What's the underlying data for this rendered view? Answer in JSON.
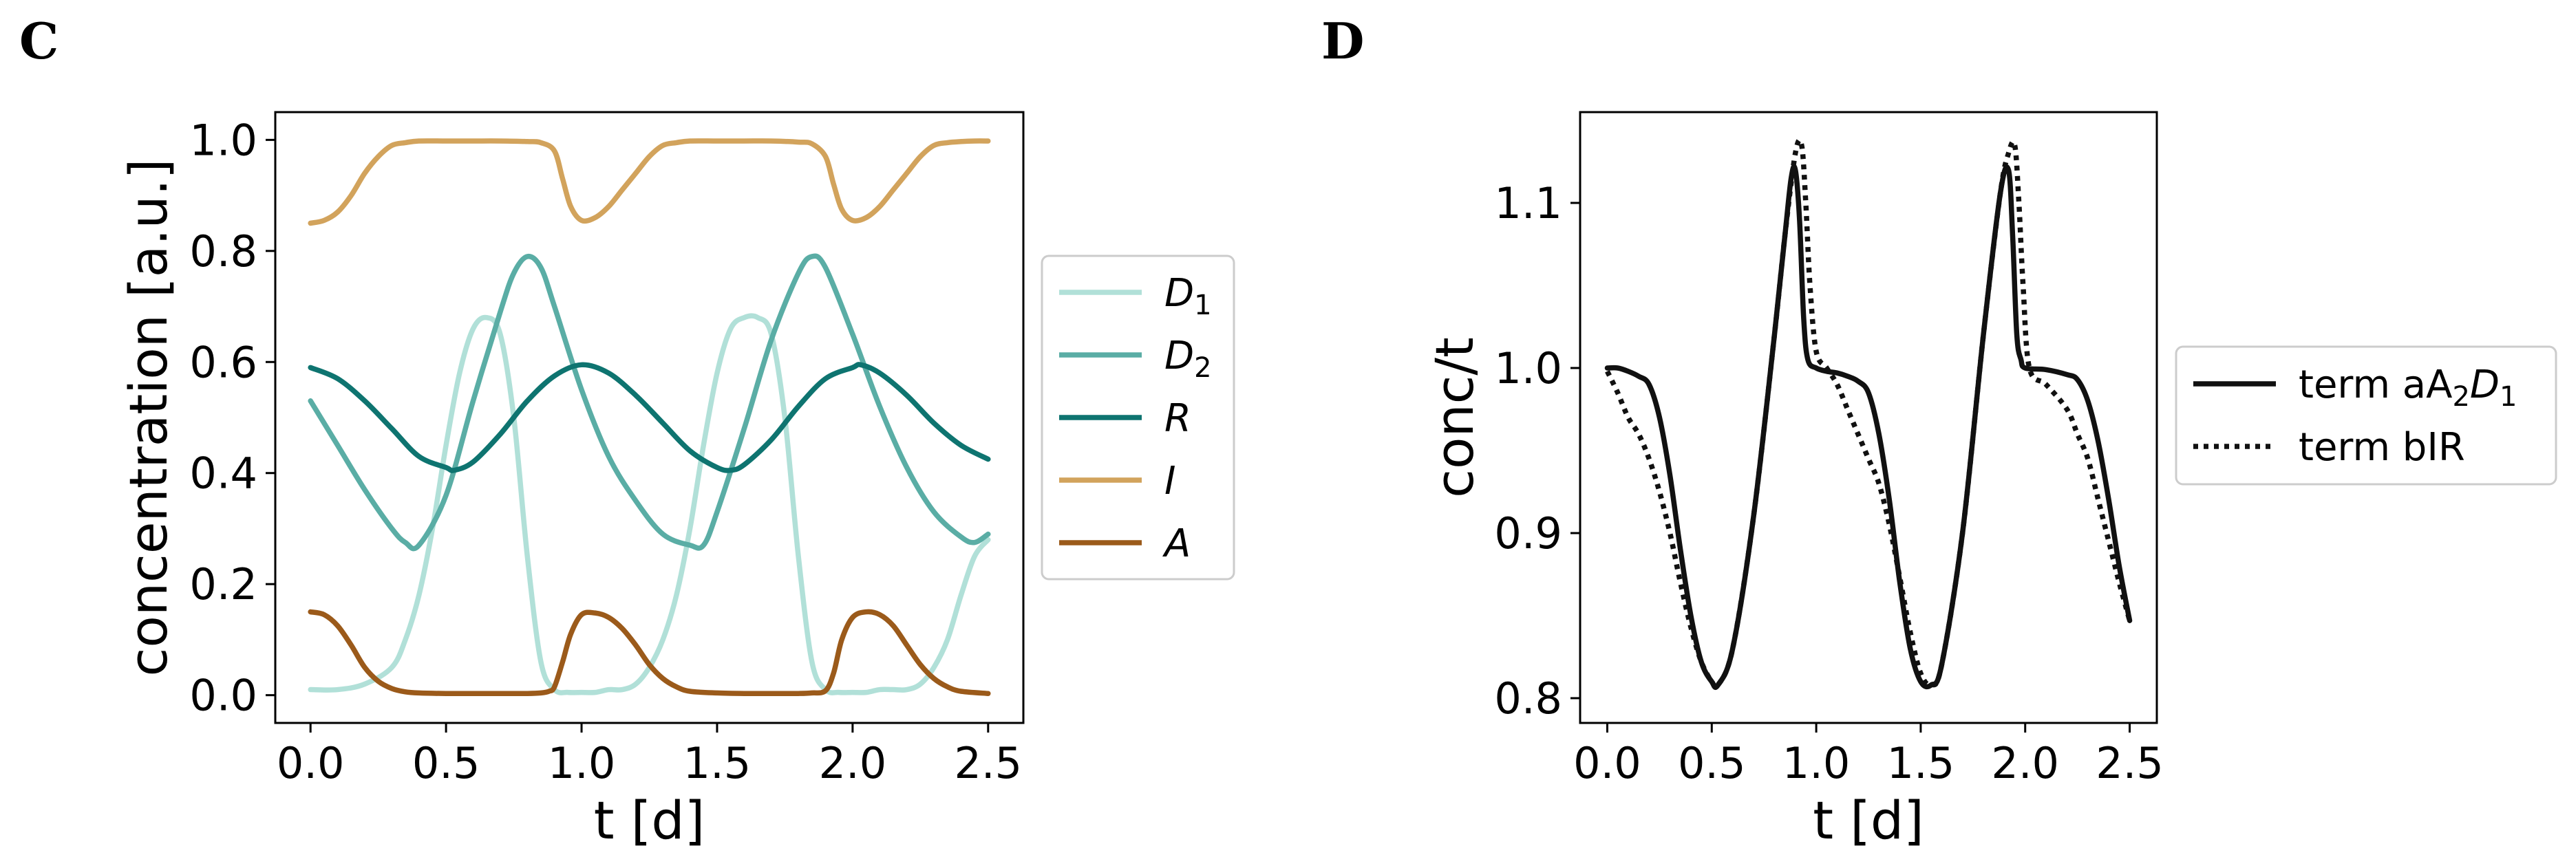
{
  "panels": {
    "left_letter": "C",
    "right_letter": "D"
  },
  "chart_data": [
    {
      "type": "line",
      "panel": "C",
      "title": "",
      "xlabel": "t [d]",
      "ylabel": "concentration [a.u.]",
      "xlim": [
        -0.13,
        2.63
      ],
      "ylim": [
        -0.05,
        1.05
      ],
      "xticks": [
        "0.0",
        "0.5",
        "1.0",
        "1.5",
        "2.0",
        "2.5"
      ],
      "xtick_values": [
        0,
        0.5,
        1.0,
        1.5,
        2.0,
        2.5
      ],
      "yticks": [
        "0.0",
        "0.2",
        "0.4",
        "0.6",
        "0.8",
        "1.0"
      ],
      "ytick_values": [
        0,
        0.2,
        0.4,
        0.6,
        0.8,
        1.0
      ],
      "legend_position": "center-right outside",
      "series": [
        {
          "name": "D",
          "sub": "1",
          "color": "#b1e0d8",
          "style": "solid",
          "x": [
            0,
            0.1,
            0.2,
            0.3,
            0.35,
            0.4,
            0.45,
            0.5,
            0.55,
            0.6,
            0.65,
            0.7,
            0.75,
            0.8,
            0.85,
            0.9,
            0.95,
            1.0,
            1.05,
            1.1,
            1.15,
            1.2,
            1.25,
            1.3,
            1.35,
            1.4,
            1.45,
            1.5,
            1.55,
            1.6,
            1.65,
            1.7,
            1.75,
            1.8,
            1.85,
            1.9,
            1.95,
            2.0,
            2.05,
            2.1,
            2.15,
            2.2,
            2.25,
            2.3,
            2.35,
            2.4,
            2.45,
            2.5
          ],
          "y": [
            0.01,
            0.01,
            0.02,
            0.05,
            0.1,
            0.18,
            0.3,
            0.45,
            0.58,
            0.66,
            0.68,
            0.65,
            0.5,
            0.25,
            0.06,
            0.01,
            0.005,
            0.005,
            0.005,
            0.01,
            0.01,
            0.02,
            0.05,
            0.1,
            0.18,
            0.3,
            0.45,
            0.58,
            0.66,
            0.68,
            0.68,
            0.65,
            0.5,
            0.25,
            0.06,
            0.01,
            0.005,
            0.005,
            0.005,
            0.01,
            0.01,
            0.01,
            0.02,
            0.05,
            0.1,
            0.18,
            0.25,
            0.28
          ]
        },
        {
          "name": "D",
          "sub": "2",
          "color": "#5aada5",
          "style": "solid",
          "x": [
            0,
            0.1,
            0.2,
            0.3,
            0.35,
            0.4,
            0.5,
            0.6,
            0.7,
            0.75,
            0.8,
            0.85,
            0.9,
            1.0,
            1.1,
            1.2,
            1.3,
            1.4,
            1.45,
            1.5,
            1.6,
            1.7,
            1.8,
            1.85,
            1.9,
            2.0,
            2.1,
            2.2,
            2.3,
            2.4,
            2.45,
            2.5
          ],
          "y": [
            0.53,
            0.45,
            0.37,
            0.3,
            0.275,
            0.27,
            0.36,
            0.53,
            0.69,
            0.76,
            0.79,
            0.77,
            0.7,
            0.55,
            0.43,
            0.35,
            0.29,
            0.27,
            0.27,
            0.33,
            0.48,
            0.64,
            0.76,
            0.79,
            0.77,
            0.65,
            0.52,
            0.41,
            0.33,
            0.285,
            0.275,
            0.29
          ]
        },
        {
          "name": "R",
          "sub": "",
          "color": "#0e7470",
          "style": "solid",
          "x": [
            0,
            0.1,
            0.2,
            0.3,
            0.4,
            0.5,
            0.53,
            0.6,
            0.7,
            0.8,
            0.9,
            1.0,
            1.1,
            1.2,
            1.3,
            1.4,
            1.5,
            1.55,
            1.6,
            1.7,
            1.8,
            1.9,
            2.0,
            2.03,
            2.1,
            2.2,
            2.3,
            2.4,
            2.5
          ],
          "y": [
            0.59,
            0.57,
            0.53,
            0.48,
            0.43,
            0.41,
            0.405,
            0.42,
            0.47,
            0.53,
            0.575,
            0.595,
            0.58,
            0.54,
            0.49,
            0.44,
            0.41,
            0.405,
            0.415,
            0.46,
            0.52,
            0.57,
            0.59,
            0.595,
            0.58,
            0.54,
            0.49,
            0.45,
            0.425
          ]
        },
        {
          "name": "I",
          "sub": "",
          "color": "#d2a35c",
          "style": "solid",
          "x": [
            0,
            0.05,
            0.1,
            0.15,
            0.2,
            0.25,
            0.3,
            0.35,
            0.4,
            0.5,
            0.6,
            0.7,
            0.8,
            0.85,
            0.9,
            0.93,
            0.96,
            1.0,
            1.05,
            1.1,
            1.15,
            1.2,
            1.25,
            1.3,
            1.35,
            1.4,
            1.5,
            1.6,
            1.7,
            1.8,
            1.85,
            1.9,
            1.93,
            1.96,
            2.0,
            2.05,
            2.1,
            2.15,
            2.2,
            2.25,
            2.3,
            2.35,
            2.4,
            2.45,
            2.5
          ],
          "y": [
            0.85,
            0.855,
            0.87,
            0.9,
            0.94,
            0.97,
            0.99,
            0.995,
            0.998,
            0.998,
            0.998,
            0.998,
            0.997,
            0.995,
            0.98,
            0.93,
            0.88,
            0.855,
            0.86,
            0.88,
            0.91,
            0.94,
            0.97,
            0.99,
            0.995,
            0.998,
            0.998,
            0.998,
            0.998,
            0.996,
            0.993,
            0.97,
            0.92,
            0.875,
            0.855,
            0.86,
            0.88,
            0.91,
            0.94,
            0.97,
            0.99,
            0.995,
            0.997,
            0.998,
            0.998
          ]
        },
        {
          "name": "A",
          "sub": "",
          "color": "#9b5a1a",
          "style": "solid",
          "x": [
            0,
            0.05,
            0.1,
            0.15,
            0.2,
            0.25,
            0.3,
            0.35,
            0.4,
            0.5,
            0.6,
            0.7,
            0.8,
            0.85,
            0.88,
            0.9,
            0.93,
            0.96,
            1.0,
            1.05,
            1.1,
            1.15,
            1.2,
            1.25,
            1.3,
            1.35,
            1.4,
            1.5,
            1.6,
            1.7,
            1.8,
            1.85,
            1.9,
            1.93,
            1.96,
            2.0,
            2.05,
            2.1,
            2.15,
            2.2,
            2.25,
            2.3,
            2.35,
            2.4,
            2.5
          ],
          "y": [
            0.15,
            0.145,
            0.125,
            0.09,
            0.05,
            0.025,
            0.012,
            0.006,
            0.004,
            0.003,
            0.003,
            0.003,
            0.003,
            0.004,
            0.007,
            0.015,
            0.06,
            0.11,
            0.145,
            0.148,
            0.14,
            0.12,
            0.09,
            0.055,
            0.03,
            0.015,
            0.007,
            0.004,
            0.003,
            0.003,
            0.003,
            0.004,
            0.008,
            0.04,
            0.1,
            0.14,
            0.15,
            0.145,
            0.125,
            0.09,
            0.055,
            0.03,
            0.015,
            0.007,
            0.003
          ]
        }
      ]
    },
    {
      "type": "line",
      "panel": "D",
      "title": "",
      "xlabel": "t [d]",
      "ylabel": "conc/t",
      "xlim": [
        -0.13,
        2.63
      ],
      "ylim": [
        0.785,
        1.155
      ],
      "xticks": [
        "0.0",
        "0.5",
        "1.0",
        "1.5",
        "2.0",
        "2.5"
      ],
      "xtick_values": [
        0,
        0.5,
        1.0,
        1.5,
        2.0,
        2.5
      ],
      "yticks": [
        "0.8",
        "0.9",
        "1.0",
        "1.1"
      ],
      "ytick_values": [
        0.8,
        0.9,
        1.0,
        1.1
      ],
      "legend_position": "center-right outside",
      "series": [
        {
          "name": "term aA",
          "sub": "2",
          "suffix": "D",
          "sub2": "1",
          "color": "#111111",
          "style": "solid",
          "x": [
            0,
            0.05,
            0.1,
            0.15,
            0.2,
            0.25,
            0.3,
            0.35,
            0.4,
            0.45,
            0.5,
            0.53,
            0.6,
            0.7,
            0.8,
            0.85,
            0.88,
            0.9,
            0.92,
            0.94,
            0.96,
            1.0,
            1.05,
            1.1,
            1.15,
            1.2,
            1.25,
            1.3,
            1.35,
            1.4,
            1.45,
            1.5,
            1.55,
            1.6,
            1.7,
            1.8,
            1.88,
            1.92,
            1.94,
            1.96,
            1.98,
            2.0,
            2.1,
            2.2,
            2.25,
            2.3,
            2.35,
            2.4,
            2.45,
            2.5
          ],
          "y": [
            1.0,
            1.0,
            0.998,
            0.995,
            0.99,
            0.97,
            0.935,
            0.89,
            0.85,
            0.822,
            0.81,
            0.808,
            0.83,
            0.91,
            1.02,
            1.08,
            1.115,
            1.12,
            1.09,
            1.03,
            1.005,
            1.0,
            0.998,
            0.997,
            0.995,
            0.992,
            0.985,
            0.96,
            0.92,
            0.87,
            0.83,
            0.81,
            0.808,
            0.82,
            0.9,
            1.02,
            1.105,
            1.12,
            1.08,
            1.02,
            1.005,
            1.0,
            0.999,
            0.996,
            0.993,
            0.98,
            0.955,
            0.92,
            0.88,
            0.847
          ]
        },
        {
          "name": "term bIR",
          "sub": "",
          "suffix": "",
          "sub2": "",
          "color": "#111111",
          "style": "dotted",
          "x": [
            0,
            0.05,
            0.1,
            0.15,
            0.2,
            0.25,
            0.3,
            0.35,
            0.4,
            0.45,
            0.5,
            0.53,
            0.6,
            0.7,
            0.8,
            0.85,
            0.9,
            0.93,
            0.95,
            0.97,
            1.0,
            1.05,
            1.1,
            1.15,
            1.2,
            1.25,
            1.3,
            1.35,
            1.4,
            1.45,
            1.5,
            1.55,
            1.6,
            1.7,
            1.8,
            1.88,
            1.92,
            1.95,
            1.97,
            1.99,
            2.02,
            2.1,
            2.2,
            2.25,
            2.3,
            2.35,
            2.4,
            2.45,
            2.5
          ],
          "y": [
            0.998,
            0.985,
            0.97,
            0.96,
            0.945,
            0.925,
            0.9,
            0.87,
            0.843,
            0.822,
            0.81,
            0.808,
            0.83,
            0.91,
            1.02,
            1.08,
            1.13,
            1.135,
            1.1,
            1.05,
            1.01,
            1.0,
            0.99,
            0.975,
            0.96,
            0.945,
            0.93,
            0.905,
            0.873,
            0.84,
            0.815,
            0.808,
            0.82,
            0.9,
            1.02,
            1.105,
            1.13,
            1.135,
            1.1,
            1.05,
            1.0,
            0.99,
            0.975,
            0.96,
            0.945,
            0.92,
            0.895,
            0.87,
            0.847
          ]
        }
      ]
    }
  ]
}
